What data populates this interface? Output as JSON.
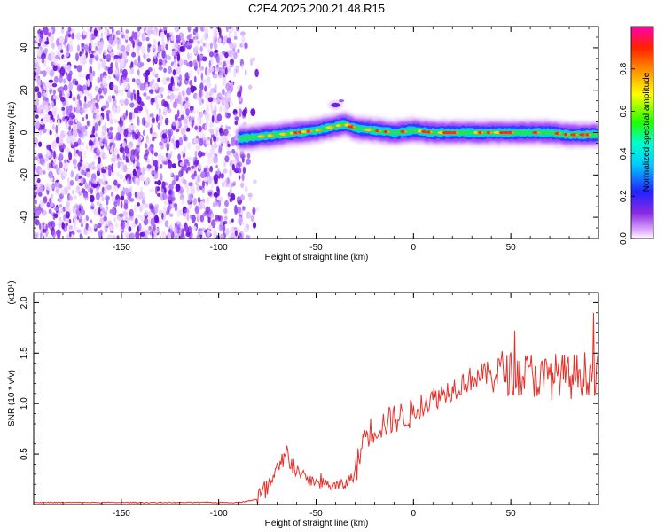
{
  "title": "C2E4.2025.200.21.48.R15",
  "chart_data": [
    {
      "type": "heatmap",
      "xlabel": "Height of straight line (km)",
      "ylabel": "Frequency (Hz)",
      "xlim": [
        -195,
        95
      ],
      "ylim": [
        -50,
        50
      ],
      "xticks": [
        -150,
        -100,
        -50,
        0,
        50
      ],
      "yticks": [
        -40,
        -20,
        0,
        20,
        40
      ],
      "noise_region": {
        "x": [
          -195,
          -80
        ],
        "y": [
          -50,
          50
        ]
      },
      "ridge": {
        "x": [
          -90,
          -80,
          -70,
          -60,
          -50,
          -40,
          -35,
          -30,
          -20,
          -10,
          0,
          10,
          20,
          30,
          40,
          50,
          60,
          70,
          80,
          90,
          95
        ],
        "y": [
          -3,
          -2,
          -1,
          0,
          1,
          3,
          4,
          2,
          1,
          0,
          1,
          0,
          0,
          0,
          0,
          0,
          0,
          0,
          -1,
          -1,
          -1
        ]
      },
      "blob": {
        "x": -40,
        "y": 13
      },
      "colorbar": {
        "label": "Normalized spectral amplitude",
        "range": [
          0,
          1
        ],
        "ticks": [
          0.0,
          0.2,
          0.4,
          0.6,
          0.8
        ]
      },
      "grid": false
    },
    {
      "type": "line",
      "xlabel": "Height of straight line (km)",
      "ylabel": "SNR (10 * v/v)",
      "multiplier": "(x10⁴)",
      "xlim": [
        -195,
        95
      ],
      "ylim": [
        0,
        2.1
      ],
      "xticks": [
        -150,
        -100,
        -50,
        0,
        50
      ],
      "yticks": [
        0.5,
        1.0,
        1.5,
        2.0
      ],
      "color": "#e8302a",
      "x": [
        -195,
        -180,
        -160,
        -140,
        -120,
        -100,
        -90,
        -80,
        -75,
        -70,
        -65,
        -60,
        -55,
        -50,
        -45,
        -40,
        -35,
        -30,
        -25,
        -20,
        -15,
        -10,
        -5,
        0,
        5,
        10,
        15,
        20,
        25,
        30,
        35,
        40,
        45,
        50,
        55,
        60,
        65,
        70,
        75,
        80,
        85,
        90,
        95
      ],
      "y": [
        0.02,
        0.02,
        0.02,
        0.02,
        0.02,
        0.02,
        0.02,
        0.05,
        0.15,
        0.3,
        0.5,
        0.35,
        0.25,
        0.22,
        0.2,
        0.18,
        0.2,
        0.3,
        0.7,
        0.75,
        0.8,
        0.85,
        0.88,
        0.9,
        1.0,
        1.05,
        1.1,
        1.15,
        1.2,
        1.25,
        1.28,
        1.3,
        1.32,
        1.3,
        1.28,
        1.3,
        1.25,
        1.25,
        1.3,
        1.25,
        1.3,
        1.3,
        1.3
      ],
      "grid": false
    }
  ]
}
